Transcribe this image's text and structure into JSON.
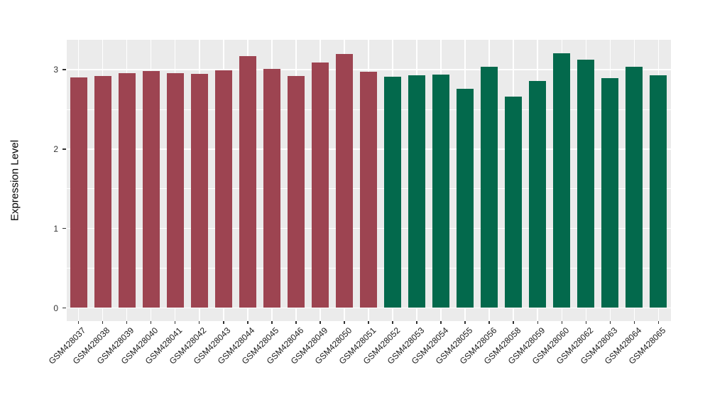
{
  "figure": {
    "background": "#FFFFFF"
  },
  "chart_data": {
    "type": "bar",
    "title": "",
    "xlabel": "",
    "ylabel": "Expression Level",
    "ylim": [
      -0.17,
      3.38
    ],
    "yticks": [
      0,
      1,
      2,
      3
    ],
    "minor_yticks": [
      0.5,
      1.5,
      2.5
    ],
    "grid": true,
    "legend_position": "none",
    "panel_background": "#EBEBEB",
    "grid_color": "#FFFFFF",
    "group_colors": {
      "maroon": "#9D4451",
      "green": "#03694C"
    },
    "bars": [
      {
        "label": "GSM428037",
        "value": 2.9,
        "group": "maroon"
      },
      {
        "label": "GSM428038",
        "value": 2.92,
        "group": "maroon"
      },
      {
        "label": "GSM428039",
        "value": 2.96,
        "group": "maroon"
      },
      {
        "label": "GSM428040",
        "value": 2.98,
        "group": "maroon"
      },
      {
        "label": "GSM428041",
        "value": 2.96,
        "group": "maroon"
      },
      {
        "label": "GSM428042",
        "value": 2.95,
        "group": "maroon"
      },
      {
        "label": "GSM428043",
        "value": 2.99,
        "group": "maroon"
      },
      {
        "label": "GSM428044",
        "value": 3.17,
        "group": "maroon"
      },
      {
        "label": "GSM428045",
        "value": 3.01,
        "group": "maroon"
      },
      {
        "label": "GSM428046",
        "value": 2.92,
        "group": "maroon"
      },
      {
        "label": "GSM428049",
        "value": 3.09,
        "group": "maroon"
      },
      {
        "label": "GSM428050",
        "value": 3.2,
        "group": "maroon"
      },
      {
        "label": "GSM428051",
        "value": 2.97,
        "group": "maroon"
      },
      {
        "label": "GSM428052",
        "value": 2.91,
        "group": "green"
      },
      {
        "label": "GSM428053",
        "value": 2.93,
        "group": "green"
      },
      {
        "label": "GSM428054",
        "value": 2.94,
        "group": "green"
      },
      {
        "label": "GSM428055",
        "value": 2.76,
        "group": "green"
      },
      {
        "label": "GSM428056",
        "value": 3.04,
        "group": "green"
      },
      {
        "label": "GSM428058",
        "value": 2.66,
        "group": "green"
      },
      {
        "label": "GSM428059",
        "value": 2.86,
        "group": "green"
      },
      {
        "label": "GSM428060",
        "value": 3.21,
        "group": "green"
      },
      {
        "label": "GSM428062",
        "value": 3.13,
        "group": "green"
      },
      {
        "label": "GSM428063",
        "value": 2.89,
        "group": "green"
      },
      {
        "label": "GSM428064",
        "value": 3.04,
        "group": "green"
      },
      {
        "label": "GSM428065",
        "value": 2.93,
        "group": "green"
      }
    ]
  }
}
